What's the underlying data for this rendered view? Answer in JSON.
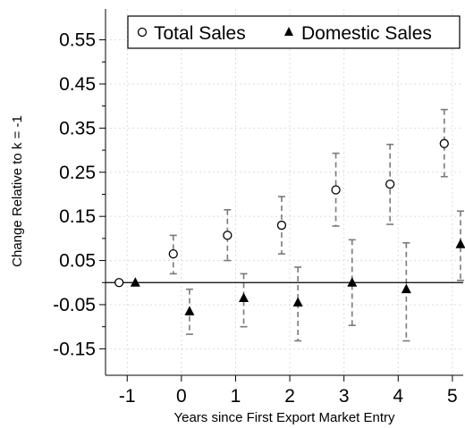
{
  "chart_data": {
    "type": "scatter",
    "xlabel": "Years since First Export Market Entry",
    "ylabel": "Change Relative to k = -1",
    "x_ticks": [
      "-1",
      "0",
      "1",
      "2",
      "3",
      "4",
      "5"
    ],
    "y_ticks": [
      "0.55",
      "0.45",
      "0.35",
      "0.25",
      "0.15",
      "0.05",
      "-0.05",
      "-0.15"
    ],
    "xlim": [
      -1.4,
      5.2
    ],
    "ylim": [
      -0.21,
      0.62
    ],
    "reference_line_y": 0,
    "grid": true,
    "legend_position": "top",
    "series": [
      {
        "name": "Total Sales",
        "marker": "hollow-circle",
        "color": "#000000",
        "x": [
          -1,
          0,
          1,
          2,
          3,
          4,
          5
        ],
        "y": [
          0.0,
          0.065,
          0.107,
          0.13,
          0.21,
          0.223,
          0.315
        ],
        "ci_low": [
          null,
          0.02,
          0.05,
          0.065,
          0.128,
          0.132,
          0.24
        ],
        "ci_high": [
          null,
          0.107,
          0.165,
          0.195,
          0.293,
          0.313,
          0.392
        ]
      },
      {
        "name": "Domestic Sales",
        "marker": "filled-triangle",
        "color": "#000000",
        "x": [
          -1,
          0,
          1,
          2,
          3,
          4,
          5
        ],
        "y": [
          0.0,
          -0.065,
          -0.035,
          -0.045,
          0.0,
          -0.015,
          0.087
        ],
        "ci_low": [
          null,
          -0.117,
          -0.1,
          -0.132,
          -0.097,
          -0.132,
          0.005
        ],
        "ci_high": [
          null,
          -0.015,
          0.02,
          0.035,
          0.097,
          0.09,
          0.162
        ]
      }
    ]
  },
  "colors": {
    "errorbar": "#7a7a7a",
    "grid": "#dcdcdc",
    "axis": "#000000"
  }
}
